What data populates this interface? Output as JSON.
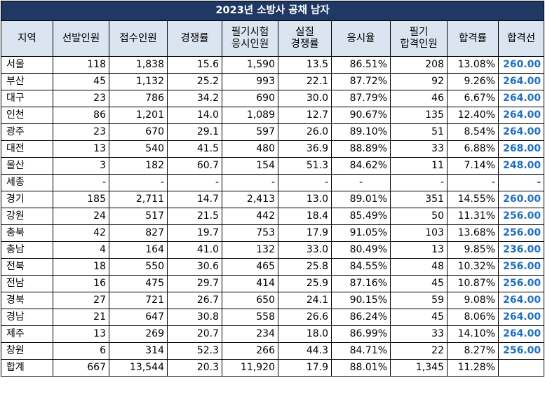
{
  "table": {
    "title": "2023년 소방사 공채 남자",
    "headers": [
      [
        "지역"
      ],
      [
        "선발인원"
      ],
      [
        "접수인원"
      ],
      [
        "경쟁률"
      ],
      [
        "필기시험",
        "응시인원"
      ],
      [
        "실질",
        "경쟁률"
      ],
      [
        "응시율"
      ],
      [
        "필기",
        "합격인원"
      ],
      [
        "합격률"
      ],
      [
        "합격선"
      ]
    ],
    "rows": [
      [
        "서울",
        "118",
        "1,838",
        "15.6",
        "1,590",
        "13.5",
        "86.51%",
        "208",
        "13.08%",
        "260.00"
      ],
      [
        "부산",
        "45",
        "1,132",
        "25.2",
        "993",
        "22.1",
        "87.72%",
        "92",
        "9.26%",
        "264.00"
      ],
      [
        "대구",
        "23",
        "786",
        "34.2",
        "690",
        "30.0",
        "87.79%",
        "46",
        "6.67%",
        "264.00"
      ],
      [
        "인천",
        "86",
        "1,201",
        "14.0",
        "1,089",
        "12.7",
        "90.67%",
        "135",
        "12.40%",
        "264.00"
      ],
      [
        "광주",
        "23",
        "670",
        "29.1",
        "597",
        "26.0",
        "89.10%",
        "51",
        "8.54%",
        "264.00"
      ],
      [
        "대전",
        "13",
        "540",
        "41.5",
        "480",
        "36.9",
        "88.89%",
        "33",
        "6.88%",
        "268.00"
      ],
      [
        "울산",
        "3",
        "182",
        "60.7",
        "154",
        "51.3",
        "84.62%",
        "11",
        "7.14%",
        "248.00"
      ],
      [
        "세종",
        "-",
        "-",
        "-",
        "-",
        "-",
        "-",
        "-",
        "-",
        "-"
      ],
      [
        "경기",
        "185",
        "2,711",
        "14.7",
        "2,413",
        "13.0",
        "89.01%",
        "351",
        "14.55%",
        "260.00"
      ],
      [
        "강원",
        "24",
        "517",
        "21.5",
        "442",
        "18.4",
        "85.49%",
        "50",
        "11.31%",
        "256.00"
      ],
      [
        "충북",
        "42",
        "827",
        "19.7",
        "753",
        "17.9",
        "91.05%",
        "103",
        "13.68%",
        "256.00"
      ],
      [
        "충남",
        "4",
        "164",
        "41.0",
        "132",
        "33.0",
        "80.49%",
        "13",
        "9.85%",
        "236.00"
      ],
      [
        "전북",
        "18",
        "550",
        "30.6",
        "465",
        "25.8",
        "84.55%",
        "48",
        "10.32%",
        "256.00"
      ],
      [
        "전남",
        "16",
        "475",
        "29.7",
        "414",
        "25.9",
        "87.16%",
        "45",
        "10.87%",
        "256.00"
      ],
      [
        "경북",
        "27",
        "721",
        "26.7",
        "650",
        "24.1",
        "90.15%",
        "59",
        "9.08%",
        "264.00"
      ],
      [
        "경남",
        "21",
        "647",
        "30.8",
        "558",
        "26.6",
        "86.24%",
        "45",
        "8.06%",
        "264.00"
      ],
      [
        "제주",
        "13",
        "269",
        "20.7",
        "234",
        "18.0",
        "86.99%",
        "33",
        "14.10%",
        "264.00"
      ],
      [
        "창원",
        "6",
        "314",
        "52.3",
        "266",
        "44.3",
        "84.71%",
        "22",
        "8.27%",
        "256.00"
      ],
      [
        "합계",
        "667",
        "13,544",
        "20.3",
        "11,920",
        "17.9",
        "88.01%",
        "1,345",
        "11.28%",
        ""
      ]
    ],
    "colors": {
      "title_bg": "#1f3864",
      "title_text": "#ffffff",
      "header_bg": "#dbe5f1",
      "cutoff_text": "#1f6fc0",
      "border": "#000000"
    }
  }
}
